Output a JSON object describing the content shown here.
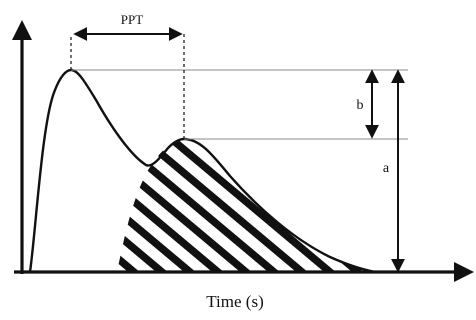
{
  "diagram": {
    "ppt_label": "PPT",
    "b_label": "b",
    "a_label": "a",
    "x_axis_label": "Time (s)"
  },
  "colors": {
    "ink": "#111111",
    "guide": "#8a8a8a",
    "background": "#ffffff"
  }
}
